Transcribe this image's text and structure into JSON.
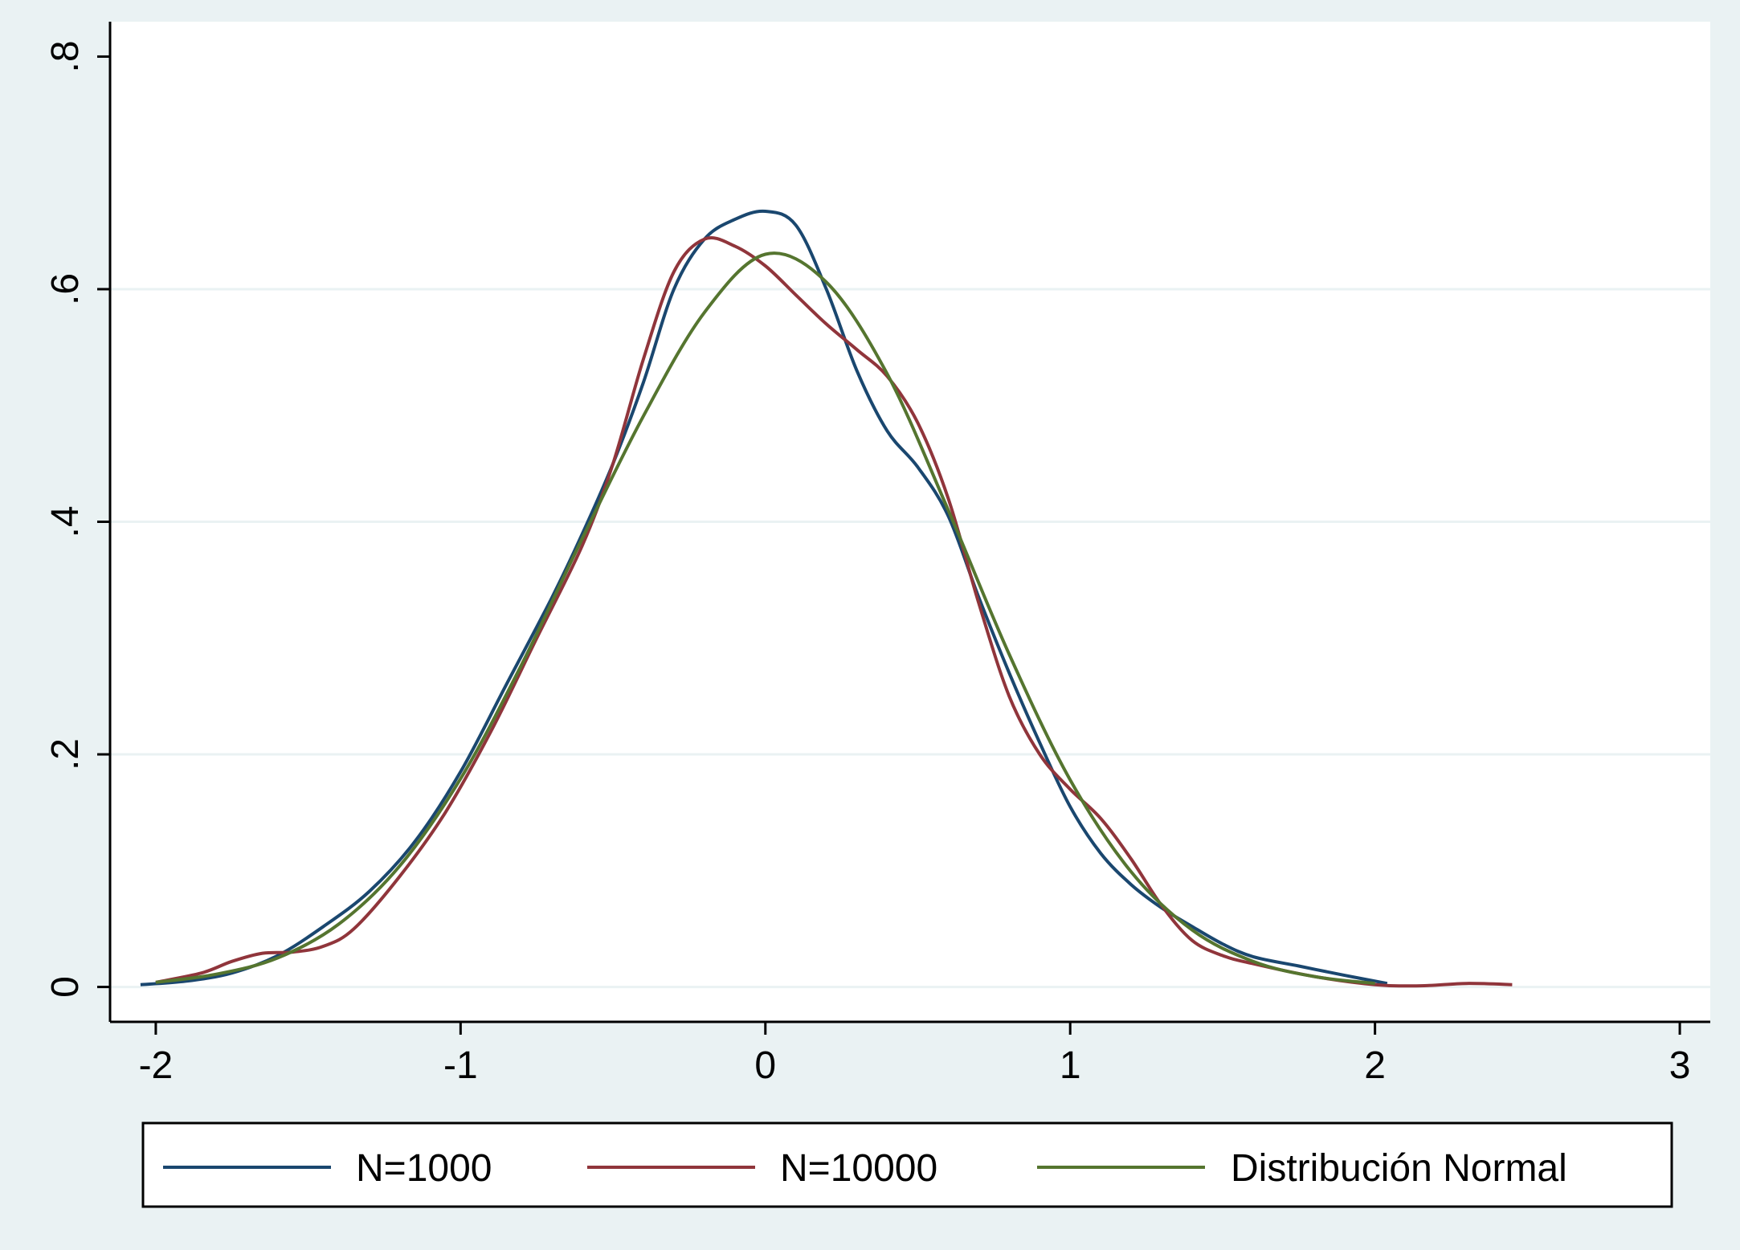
{
  "colors": {
    "background": "#eaf2f3",
    "plot_background": "#ffffff",
    "grid": "#eaf2f3",
    "axis": "#000000",
    "series": [
      "#1a476f",
      "#90353b",
      "#55752f"
    ]
  },
  "chart_data": {
    "type": "line",
    "title": "",
    "xlabel": "",
    "ylabel": "",
    "xlim": [
      -2.15,
      3.1
    ],
    "ylim": [
      -0.03,
      0.83
    ],
    "x_ticks": [
      -2,
      -1,
      0,
      1,
      2,
      3
    ],
    "x_tick_labels": [
      "-2",
      "-1",
      "0",
      "1",
      "2",
      "3"
    ],
    "y_ticks": [
      0,
      0.2,
      0.4,
      0.6,
      0.8
    ],
    "y_tick_labels": [
      "0",
      ".2",
      ".4",
      ".6",
      ".8"
    ],
    "grid": "horizontal",
    "legend_position": "bottom",
    "series": [
      {
        "name": "N=1000",
        "points": [
          [
            -2.05,
            0.002
          ],
          [
            -1.9,
            0.005
          ],
          [
            -1.75,
            0.012
          ],
          [
            -1.6,
            0.027
          ],
          [
            -1.45,
            0.052
          ],
          [
            -1.3,
            0.082
          ],
          [
            -1.15,
            0.125
          ],
          [
            -1.0,
            0.185
          ],
          [
            -0.85,
            0.26
          ],
          [
            -0.7,
            0.335
          ],
          [
            -0.6,
            0.39
          ],
          [
            -0.5,
            0.45
          ],
          [
            -0.4,
            0.52
          ],
          [
            -0.3,
            0.6
          ],
          [
            -0.2,
            0.643
          ],
          [
            -0.1,
            0.66
          ],
          [
            0.0,
            0.667
          ],
          [
            0.1,
            0.655
          ],
          [
            0.2,
            0.6
          ],
          [
            0.3,
            0.53
          ],
          [
            0.4,
            0.478
          ],
          [
            0.5,
            0.447
          ],
          [
            0.6,
            0.405
          ],
          [
            0.7,
            0.335
          ],
          [
            0.8,
            0.27
          ],
          [
            0.9,
            0.21
          ],
          [
            1.0,
            0.155
          ],
          [
            1.1,
            0.115
          ],
          [
            1.2,
            0.088
          ],
          [
            1.3,
            0.068
          ],
          [
            1.4,
            0.052
          ],
          [
            1.5,
            0.037
          ],
          [
            1.6,
            0.026
          ],
          [
            1.75,
            0.018
          ],
          [
            1.9,
            0.01
          ],
          [
            2.04,
            0.003
          ]
        ]
      },
      {
        "name": "N=10000",
        "points": [
          [
            -2.0,
            0.004
          ],
          [
            -1.85,
            0.012
          ],
          [
            -1.75,
            0.022
          ],
          [
            -1.65,
            0.029
          ],
          [
            -1.55,
            0.03
          ],
          [
            -1.45,
            0.035
          ],
          [
            -1.35,
            0.05
          ],
          [
            -1.2,
            0.095
          ],
          [
            -1.05,
            0.15
          ],
          [
            -0.9,
            0.22
          ],
          [
            -0.75,
            0.3
          ],
          [
            -0.6,
            0.38
          ],
          [
            -0.5,
            0.45
          ],
          [
            -0.4,
            0.54
          ],
          [
            -0.3,
            0.615
          ],
          [
            -0.2,
            0.643
          ],
          [
            -0.1,
            0.637
          ],
          [
            0.0,
            0.62
          ],
          [
            0.1,
            0.595
          ],
          [
            0.2,
            0.57
          ],
          [
            0.3,
            0.548
          ],
          [
            0.4,
            0.525
          ],
          [
            0.5,
            0.485
          ],
          [
            0.6,
            0.42
          ],
          [
            0.7,
            0.33
          ],
          [
            0.8,
            0.25
          ],
          [
            0.9,
            0.2
          ],
          [
            1.0,
            0.17
          ],
          [
            1.1,
            0.145
          ],
          [
            1.2,
            0.11
          ],
          [
            1.3,
            0.07
          ],
          [
            1.4,
            0.04
          ],
          [
            1.5,
            0.027
          ],
          [
            1.6,
            0.02
          ],
          [
            1.8,
            0.009
          ],
          [
            2.0,
            0.002
          ],
          [
            2.15,
            0.001
          ],
          [
            2.3,
            0.003
          ],
          [
            2.45,
            0.002
          ]
        ]
      },
      {
        "name": "Distribución Normal",
        "points": [
          [
            -2.0,
            0.004
          ],
          [
            -1.8,
            0.011
          ],
          [
            -1.6,
            0.025
          ],
          [
            -1.4,
            0.054
          ],
          [
            -1.2,
            0.104
          ],
          [
            -1.0,
            0.179
          ],
          [
            -0.8,
            0.277
          ],
          [
            -0.6,
            0.386
          ],
          [
            -0.4,
            0.491
          ],
          [
            -0.2,
            0.58
          ],
          [
            0.0,
            0.63
          ],
          [
            0.2,
            0.606
          ],
          [
            0.4,
            0.527
          ],
          [
            0.6,
            0.41
          ],
          [
            0.8,
            0.286
          ],
          [
            1.0,
            0.178
          ],
          [
            1.2,
            0.099
          ],
          [
            1.4,
            0.049
          ],
          [
            1.6,
            0.022
          ],
          [
            1.8,
            0.009
          ],
          [
            2.0,
            0.003
          ]
        ]
      }
    ]
  }
}
